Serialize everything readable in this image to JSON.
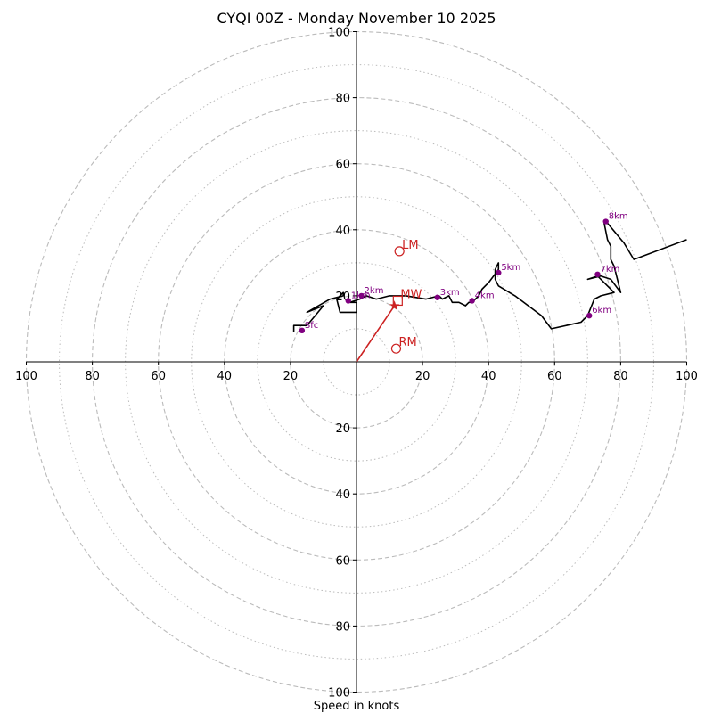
{
  "chart_data": {
    "type": "hodograph",
    "title": "CYQI 00Z - Monday November 10 2025",
    "xlabel": "Speed in knots",
    "xlim": [
      -100,
      100
    ],
    "ylim": [
      -100,
      100
    ],
    "rings_major": [
      20,
      40,
      60,
      80,
      100
    ],
    "rings_minor": [
      10,
      30,
      50,
      70,
      90
    ],
    "x_ticks": [
      "100",
      "80",
      "60",
      "40",
      "20",
      "20",
      "40",
      "60",
      "80",
      "100"
    ],
    "x_tick_values": [
      -100,
      -80,
      -60,
      -40,
      -20,
      20,
      40,
      60,
      80,
      100
    ],
    "y_ticks": [
      "100",
      "80",
      "60",
      "40",
      "20",
      "20",
      "40",
      "60",
      "80",
      "100"
    ],
    "y_tick_values": [
      100,
      80,
      60,
      40,
      20,
      -20,
      -40,
      -60,
      -80,
      -100
    ],
    "trace": [
      [
        -19,
        9
      ],
      [
        -19,
        11
      ],
      [
        -15,
        11
      ],
      [
        -10,
        17
      ],
      [
        -15,
        15
      ],
      [
        -8,
        19
      ],
      [
        -4,
        20
      ],
      [
        -4,
        21
      ],
      [
        -6,
        19
      ],
      [
        -5,
        15
      ],
      [
        0,
        15
      ],
      [
        0,
        18
      ],
      [
        -2,
        18
      ],
      [
        1,
        19
      ],
      [
        3,
        20
      ],
      [
        6,
        19
      ],
      [
        10,
        20
      ],
      [
        15,
        20
      ],
      [
        21,
        19
      ],
      [
        25,
        20
      ],
      [
        26,
        19
      ],
      [
        28,
        20
      ],
      [
        29,
        18
      ],
      [
        31,
        18
      ],
      [
        33,
        17
      ],
      [
        34,
        18
      ],
      [
        35,
        18
      ],
      [
        37,
        20
      ],
      [
        38,
        22
      ],
      [
        40,
        24
      ],
      [
        43,
        28
      ],
      [
        43,
        30
      ],
      [
        42,
        28
      ],
      [
        42,
        25
      ],
      [
        43,
        23
      ],
      [
        48,
        20
      ],
      [
        56,
        14
      ],
      [
        59,
        10
      ],
      [
        68,
        12
      ],
      [
        70,
        14
      ],
      [
        72,
        19
      ],
      [
        74,
        20
      ],
      [
        78,
        21
      ],
      [
        76,
        23
      ],
      [
        73,
        26
      ],
      [
        70,
        25
      ],
      [
        74,
        26
      ],
      [
        77,
        25
      ],
      [
        80,
        21
      ],
      [
        78,
        29
      ],
      [
        77,
        31
      ],
      [
        77,
        35
      ],
      [
        76,
        37
      ],
      [
        75,
        42
      ],
      [
        76,
        42
      ],
      [
        81,
        36
      ],
      [
        84,
        31
      ],
      [
        100,
        37
      ]
    ],
    "height_markers": [
      {
        "label": "Sfc",
        "u": -16.5,
        "v": 9.5
      },
      {
        "label": "1km",
        "u": -2.5,
        "v": 18.5
      },
      {
        "label": "2km",
        "u": 1.5,
        "v": 20
      },
      {
        "label": "3km",
        "u": 24.5,
        "v": 19.5
      },
      {
        "label": "4km",
        "u": 35,
        "v": 18.5
      },
      {
        "label": "5km",
        "u": 43,
        "v": 27
      },
      {
        "label": "6km",
        "u": 70.5,
        "v": 14
      },
      {
        "label": "7km",
        "u": 73,
        "v": 26.5
      },
      {
        "label": "8km",
        "u": 75.5,
        "v": 42.5
      }
    ],
    "storm_motion": [
      {
        "label": "LM",
        "u": 13,
        "v": 33.5,
        "marker": "circle"
      },
      {
        "label": "MW",
        "u": 12.5,
        "v": 18.5,
        "marker": "square"
      },
      {
        "label": "RM",
        "u": 12,
        "v": 4,
        "marker": "circle"
      }
    ],
    "shear_vector": {
      "u": 11.5,
      "v": 17
    },
    "colors": {
      "trace": "#000000",
      "marker": "#800080",
      "motion": "#cc2222",
      "grid": "#bbbbbb"
    }
  }
}
